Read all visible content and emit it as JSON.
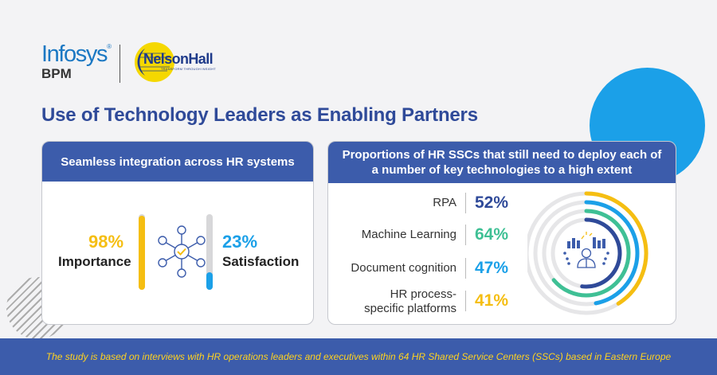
{
  "brand": {
    "infosys": "Infosys",
    "infosys_mark": "®",
    "bpm": "BPM",
    "nelsonhall": "NelsonHall",
    "nelsonhall_tagline": "TRANSFORM THROUGH INSIGHT"
  },
  "title": "Use of Technology Leaders as Enabling Partners",
  "left_card": {
    "header": "Seamless integration across HR systems",
    "importance": {
      "value": "98%",
      "label": "Importance",
      "level": 0.98,
      "color": "#f5be12"
    },
    "satisfaction": {
      "value": "23%",
      "label": "Satisfaction",
      "level": 0.23,
      "color": "#1ba0e8"
    },
    "icon": "hr-network-icon"
  },
  "right_card": {
    "header": "Proportions of HR SSCs that still need to deploy each of a number of key technologies to a high extent",
    "icon": "analyst-chart-icon",
    "items": [
      {
        "label": "RPA",
        "value": "52%",
        "pct": 52,
        "color": "#2f4a99"
      },
      {
        "label": "Machine Learning",
        "value": "64%",
        "pct": 64,
        "color": "#3fc095"
      },
      {
        "label": "Document cognition",
        "value": "47%",
        "pct": 47,
        "color": "#1ba0e8"
      },
      {
        "label": "HR process-specific platforms",
        "value": "41%",
        "pct": 41,
        "color": "#f5be12"
      }
    ]
  },
  "footer": "The study is based on interviews with HR operations leaders and executives within 64 HR Shared Service Centers (SSCs) based in Eastern Europe"
}
